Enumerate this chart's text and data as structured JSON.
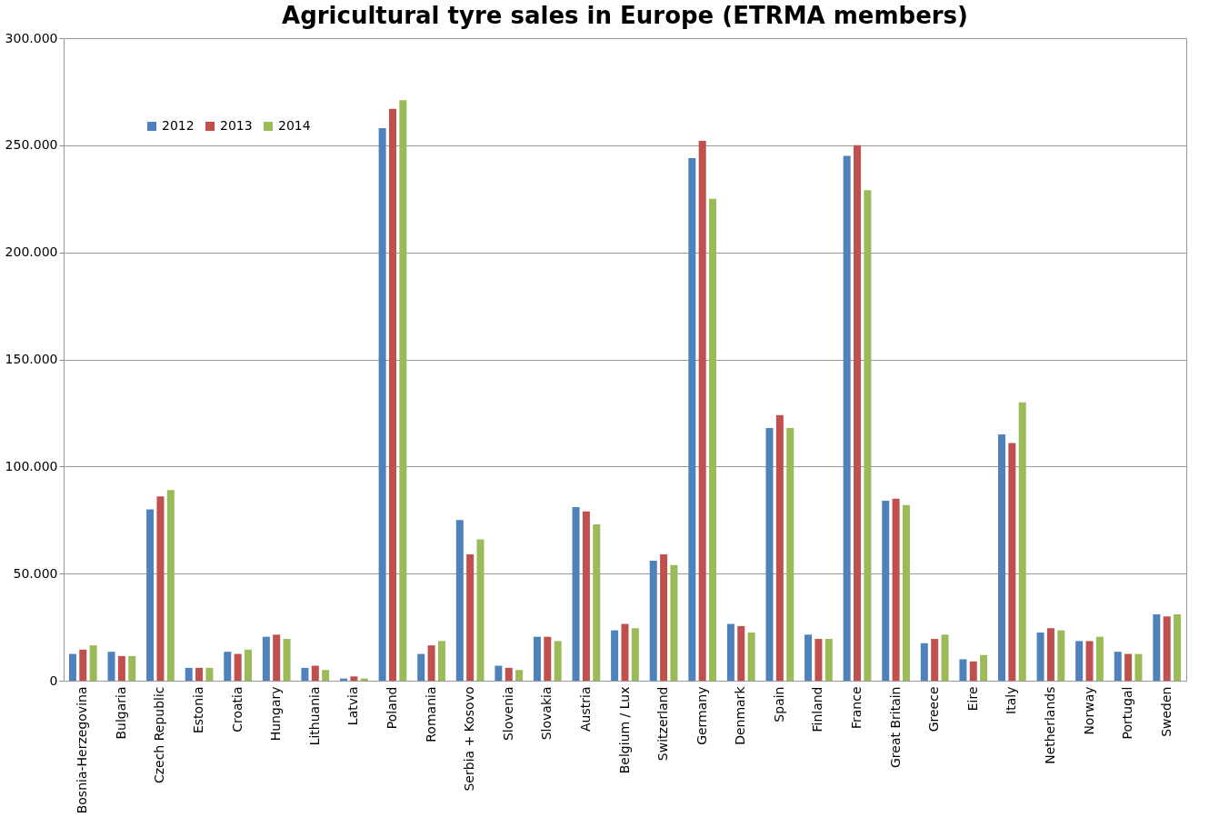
{
  "chart_data": {
    "type": "bar",
    "title": "Agricultural tyre sales in Europe (ETRMA members)",
    "categories": [
      "Bosnia-Herzegovina",
      "Bulgaria",
      "Czech Republic",
      "Estonia",
      "Croatia",
      "Hungary",
      "Lithuania",
      "Latvia",
      "Poland",
      "Romania",
      "Serbia + Kosovo",
      "Slovenia",
      "Slovakia",
      "Austria",
      "Belgium / Lux",
      "Switzerland",
      "Germany",
      "Denmark",
      "Spain",
      "Finland",
      "France",
      "Great Britain",
      "Greece",
      "Eire",
      "Italy",
      "Netherlands",
      "Norway",
      "Portugal",
      "Sweden"
    ],
    "series": [
      {
        "name": "2012",
        "color": "#4f81bd",
        "values": [
          12500,
          13500,
          80000,
          6000,
          13500,
          20500,
          6000,
          1000,
          258000,
          12500,
          75000,
          7000,
          20500,
          81000,
          23500,
          56000,
          244000,
          26500,
          118000,
          21500,
          245000,
          84000,
          17500,
          10000,
          115000,
          22500,
          18500,
          13500,
          31000
        ]
      },
      {
        "name": "2013",
        "color": "#c0504d",
        "values": [
          14500,
          11500,
          86000,
          6000,
          12500,
          21500,
          7000,
          2000,
          267000,
          16500,
          59000,
          6000,
          20500,
          79000,
          26500,
          59000,
          252000,
          25500,
          124000,
          19500,
          250000,
          85000,
          19500,
          9000,
          111000,
          24500,
          18500,
          12500,
          30000
        ]
      },
      {
        "name": "2014",
        "color": "#9bbb59",
        "values": [
          16500,
          11500,
          89000,
          6000,
          14500,
          19500,
          5000,
          1000,
          271000,
          18500,
          66000,
          5000,
          18500,
          73000,
          24500,
          54000,
          225000,
          22500,
          118000,
          19500,
          229000,
          82000,
          21500,
          12000,
          130000,
          23500,
          20500,
          12500,
          31000
        ]
      }
    ],
    "ylim": [
      0,
      300000
    ],
    "yticks": [
      {
        "value": 0,
        "label": "0"
      },
      {
        "value": 50000,
        "label": "50.000"
      },
      {
        "value": 100000,
        "label": "100.000"
      },
      {
        "value": 150000,
        "label": "150.000"
      },
      {
        "value": 200000,
        "label": "200.000"
      },
      {
        "value": 250000,
        "label": "250.000"
      },
      {
        "value": 300000,
        "label": "300.000"
      }
    ],
    "grid": "y",
    "legend": "top left"
  }
}
